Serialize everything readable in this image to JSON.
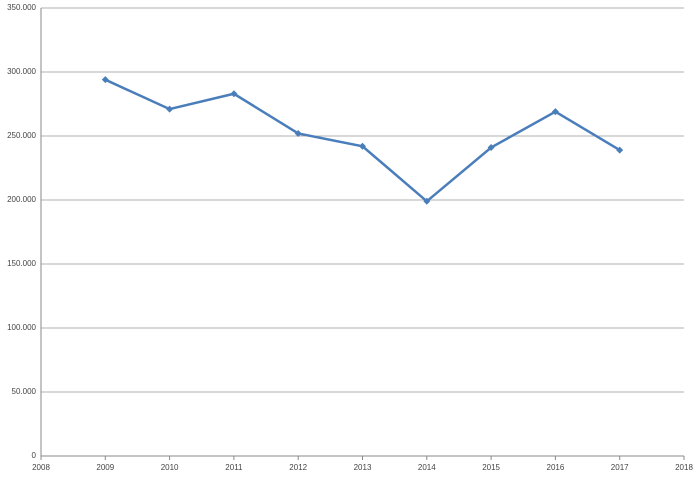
{
  "chart_data": {
    "type": "line",
    "x": [
      2009,
      2010,
      2011,
      2012,
      2013,
      2014,
      2015,
      2016,
      2017
    ],
    "values": [
      294000,
      271000,
      283000,
      252000,
      242000,
      199000,
      241000,
      269000,
      239000
    ],
    "color": "#4a7ebb",
    "xlim": [
      2008,
      2018
    ],
    "xticks": [
      2008,
      2009,
      2010,
      2011,
      2012,
      2013,
      2014,
      2015,
      2016,
      2017,
      2018
    ],
    "ylim": [
      0,
      350000
    ],
    "yticks": [
      0,
      {
        "value": 50000,
        "label": "50.000"
      },
      {
        "value": 100000,
        "label": "100.000"
      },
      {
        "value": 150000,
        "label": "150.000"
      },
      {
        "value": 200000,
        "label": "200.000"
      },
      {
        "value": 250000,
        "label": "250.000"
      },
      {
        "value": 300000,
        "label": "300.000"
      },
      {
        "value": 350000,
        "label": "350.000"
      }
    ],
    "grid": true
  }
}
